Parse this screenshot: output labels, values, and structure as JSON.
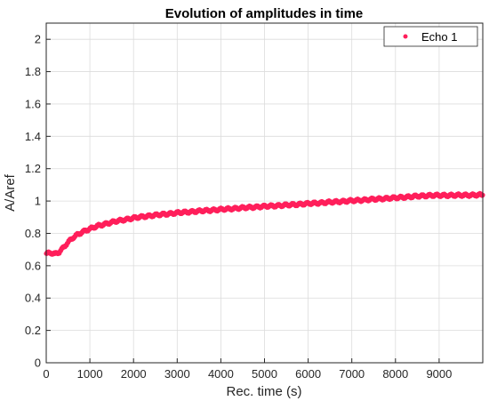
{
  "chart_data": {
    "type": "scatter",
    "title": "Evolution of amplitudes in time",
    "xlabel": "Rec. time (s)",
    "ylabel": "A/Aref",
    "xlim": [
      0,
      10000
    ],
    "ylim": [
      0,
      2.1
    ],
    "xticks": [
      0,
      1000,
      2000,
      3000,
      4000,
      5000,
      6000,
      7000,
      8000,
      9000
    ],
    "yticks": [
      0,
      0.2,
      0.4,
      0.6,
      0.8,
      1,
      1.2,
      1.4,
      1.6,
      1.8,
      2
    ],
    "grid": true,
    "legend_position": "top-right",
    "series": [
      {
        "name": "Echo 1",
        "color": "#ff1f5b",
        "marker": "dot",
        "points": [
          [
            0,
            0.675
          ],
          [
            100,
            0.68
          ],
          [
            200,
            0.672
          ],
          [
            300,
            0.685
          ],
          [
            400,
            0.715
          ],
          [
            500,
            0.745
          ],
          [
            600,
            0.77
          ],
          [
            700,
            0.79
          ],
          [
            800,
            0.805
          ],
          [
            900,
            0.818
          ],
          [
            1000,
            0.828
          ],
          [
            1200,
            0.848
          ],
          [
            1400,
            0.862
          ],
          [
            1600,
            0.875
          ],
          [
            1800,
            0.885
          ],
          [
            2000,
            0.895
          ],
          [
            2250,
            0.905
          ],
          [
            2500,
            0.913
          ],
          [
            2750,
            0.92
          ],
          [
            3000,
            0.927
          ],
          [
            3500,
            0.938
          ],
          [
            4000,
            0.948
          ],
          [
            4500,
            0.958
          ],
          [
            5000,
            0.967
          ],
          [
            5500,
            0.975
          ],
          [
            6000,
            0.984
          ],
          [
            6500,
            0.993
          ],
          [
            7000,
            1.002
          ],
          [
            7500,
            1.011
          ],
          [
            8000,
            1.02
          ],
          [
            8500,
            1.03
          ],
          [
            8800,
            1.035
          ],
          [
            9000,
            1.035
          ],
          [
            9500,
            1.036
          ],
          [
            10000,
            1.038
          ]
        ]
      }
    ]
  }
}
